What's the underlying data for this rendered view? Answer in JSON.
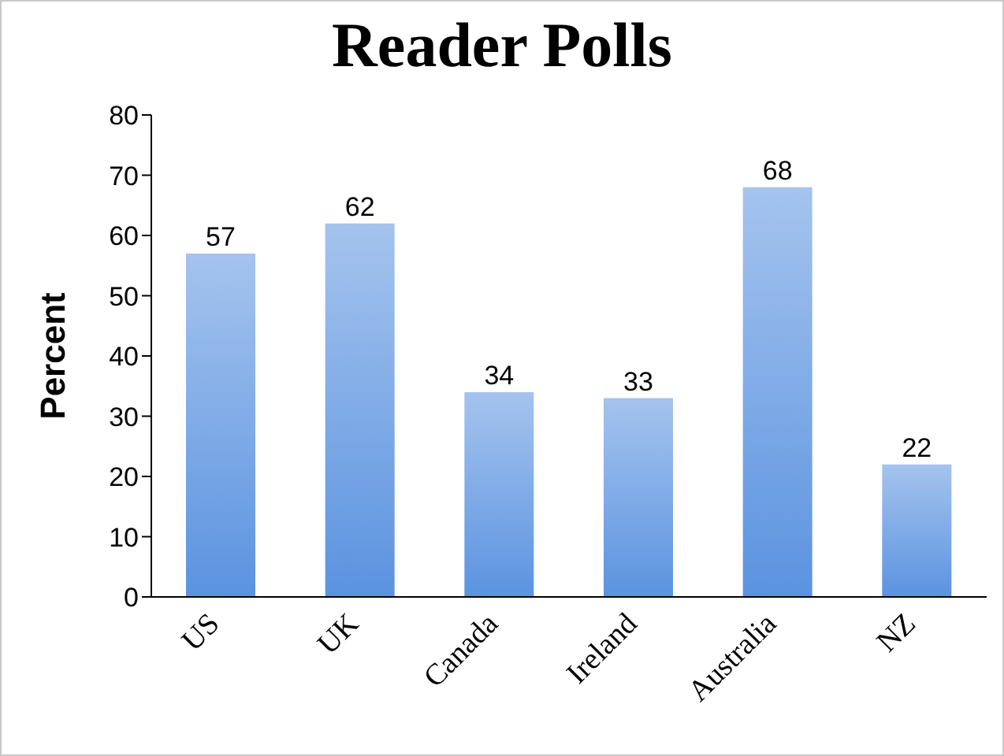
{
  "chart_data": {
    "type": "bar",
    "title": "Reader Polls",
    "ylabel": "Percent",
    "categories": [
      "US",
      "UK",
      "Canada",
      "Ireland",
      "Australia",
      "NZ"
    ],
    "values": [
      57,
      62,
      34,
      33,
      68,
      22
    ],
    "color": "#5b93e0",
    "ylim": [
      0,
      80
    ],
    "yticks": [
      0,
      10,
      20,
      30,
      40,
      50,
      60,
      70,
      80
    ],
    "grid": false,
    "data_labels": true
  }
}
